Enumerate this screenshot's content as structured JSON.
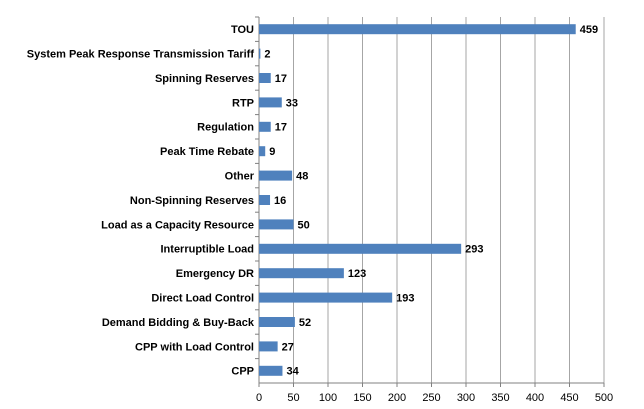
{
  "chart_data": {
    "type": "bar",
    "orientation": "horizontal",
    "categories": [
      "TOU",
      "System Peak Response Transmission Tariff",
      "Spinning Reserves",
      "RTP",
      "Regulation",
      "Peak Time Rebate",
      "Other",
      "Non-Spinning Reserves",
      "Load as a Capacity Resource",
      "Interruptible Load",
      "Emergency DR",
      "Direct Load Control",
      "Demand Bidding & Buy-Back",
      "CPP with Load Control",
      "CPP"
    ],
    "values": [
      459,
      2,
      17,
      33,
      17,
      9,
      48,
      16,
      50,
      293,
      123,
      193,
      52,
      27,
      34
    ],
    "color": "#4f81bd",
    "xlim": [
      0,
      500
    ],
    "xticks": [
      0,
      50,
      100,
      150,
      200,
      250,
      300,
      350,
      400,
      450,
      500
    ],
    "grid": true,
    "data_labels": true
  }
}
